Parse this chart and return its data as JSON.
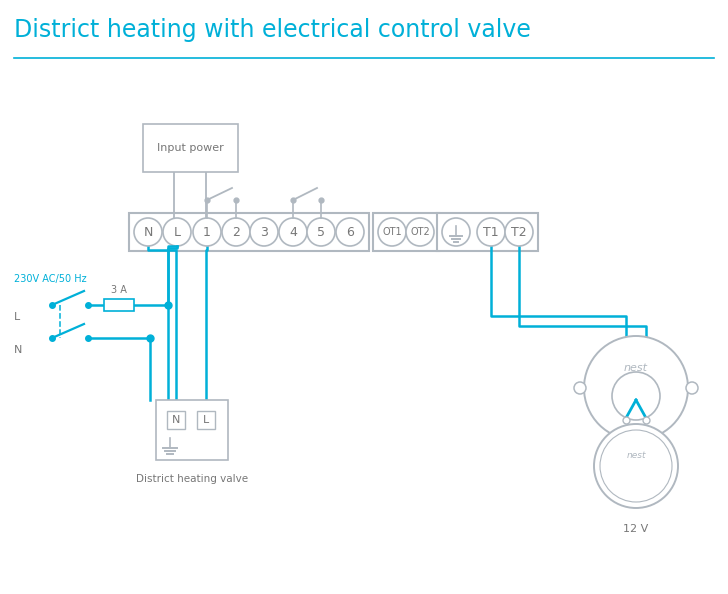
{
  "title": "District heating with electrical control valve",
  "title_color": "#00b0d8",
  "title_fontsize": 17,
  "line_color": "#00b0d8",
  "gray": "#777777",
  "light_gray": "#b0b8c0",
  "bg_color": "#ffffff",
  "left_label": "230V AC/50 Hz",
  "fuse_label": "3 A",
  "valve_label": "District heating valve",
  "nest_label": "12 V",
  "input_power_label": "Input power",
  "fig_w": 7.28,
  "fig_h": 5.94,
  "dpi": 100
}
